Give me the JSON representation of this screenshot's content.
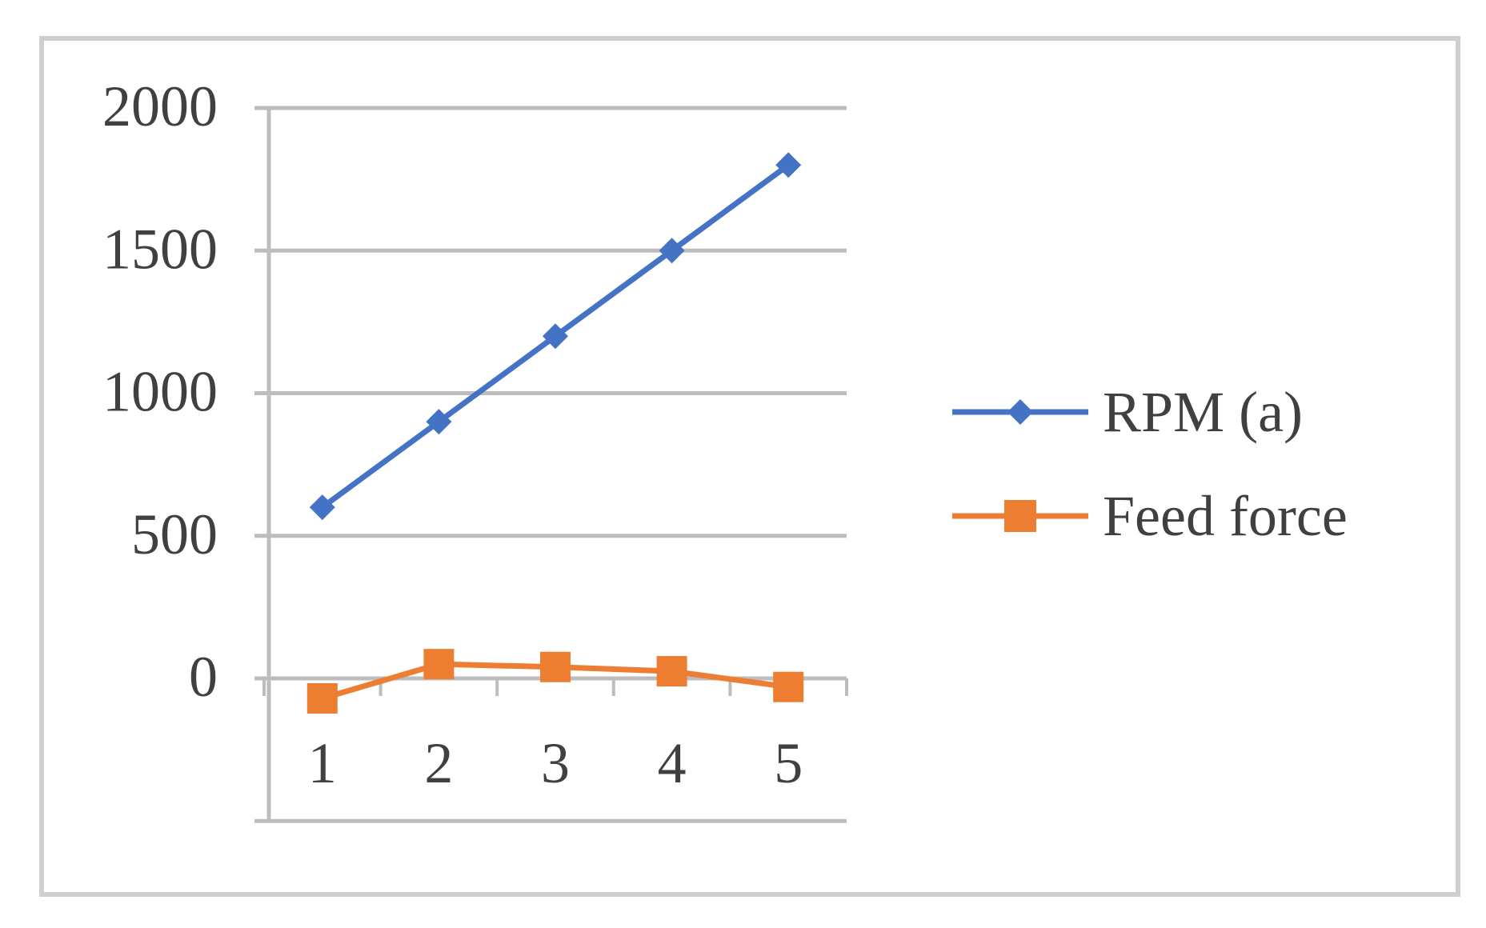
{
  "chart_data": {
    "type": "line",
    "categories": [
      "1",
      "2",
      "3",
      "4",
      "5"
    ],
    "series": [
      {
        "name": "RPM (a)",
        "values": [
          600,
          900,
          1200,
          1500,
          1800
        ],
        "color": "#4472c4",
        "marker": "diamond"
      },
      {
        "name": "Feed force",
        "values": [
          -70,
          50,
          40,
          25,
          -30
        ],
        "color": "#ed7d31",
        "marker": "square"
      }
    ],
    "y_ticks": [
      "2000",
      "1500",
      "1000",
      "500",
      "0"
    ],
    "ylim": [
      -500,
      2000
    ],
    "xlabel": "",
    "ylabel": "",
    "title": "",
    "grid": true,
    "legend": "right"
  }
}
